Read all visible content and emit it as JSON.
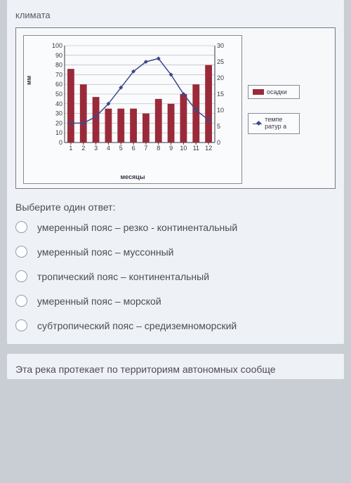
{
  "top_fragment": "климата",
  "chart": {
    "type": "bar+line",
    "x_label": "месяцы",
    "y_left_label": "мм",
    "y_left": {
      "min": 0,
      "max": 100,
      "step": 10
    },
    "y_right": {
      "min": 0,
      "max": 30,
      "step": 5
    },
    "categories": [
      1,
      2,
      3,
      4,
      5,
      6,
      7,
      8,
      9,
      10,
      11,
      12
    ],
    "bars": {
      "values": [
        76,
        60,
        47,
        35,
        35,
        35,
        30,
        45,
        40,
        50,
        60,
        80
      ],
      "color": "#9a2a3a",
      "width_frac": 0.55
    },
    "line": {
      "values": [
        6,
        6,
        8,
        12,
        17,
        22,
        25,
        26,
        21,
        15,
        10,
        7
      ],
      "color": "#3a4a8a",
      "marker": "diamond"
    },
    "plot_bg": "#fafbfc",
    "grid_color": "#b0aeb8",
    "legend": {
      "bar_label": "осадки",
      "line_label": "темпе ратур а"
    }
  },
  "prompt": "Выберите один ответ:",
  "options": [
    "умеренный пояс – резко - континентальный",
    "умеренный пояс – муссонный",
    "тропический пояс – континентальный",
    "умеренный пояс – морской",
    "субтропический пояс – средиземноморский"
  ],
  "bottom_fragment": "Эта река протекает по территориям автономных сообще"
}
